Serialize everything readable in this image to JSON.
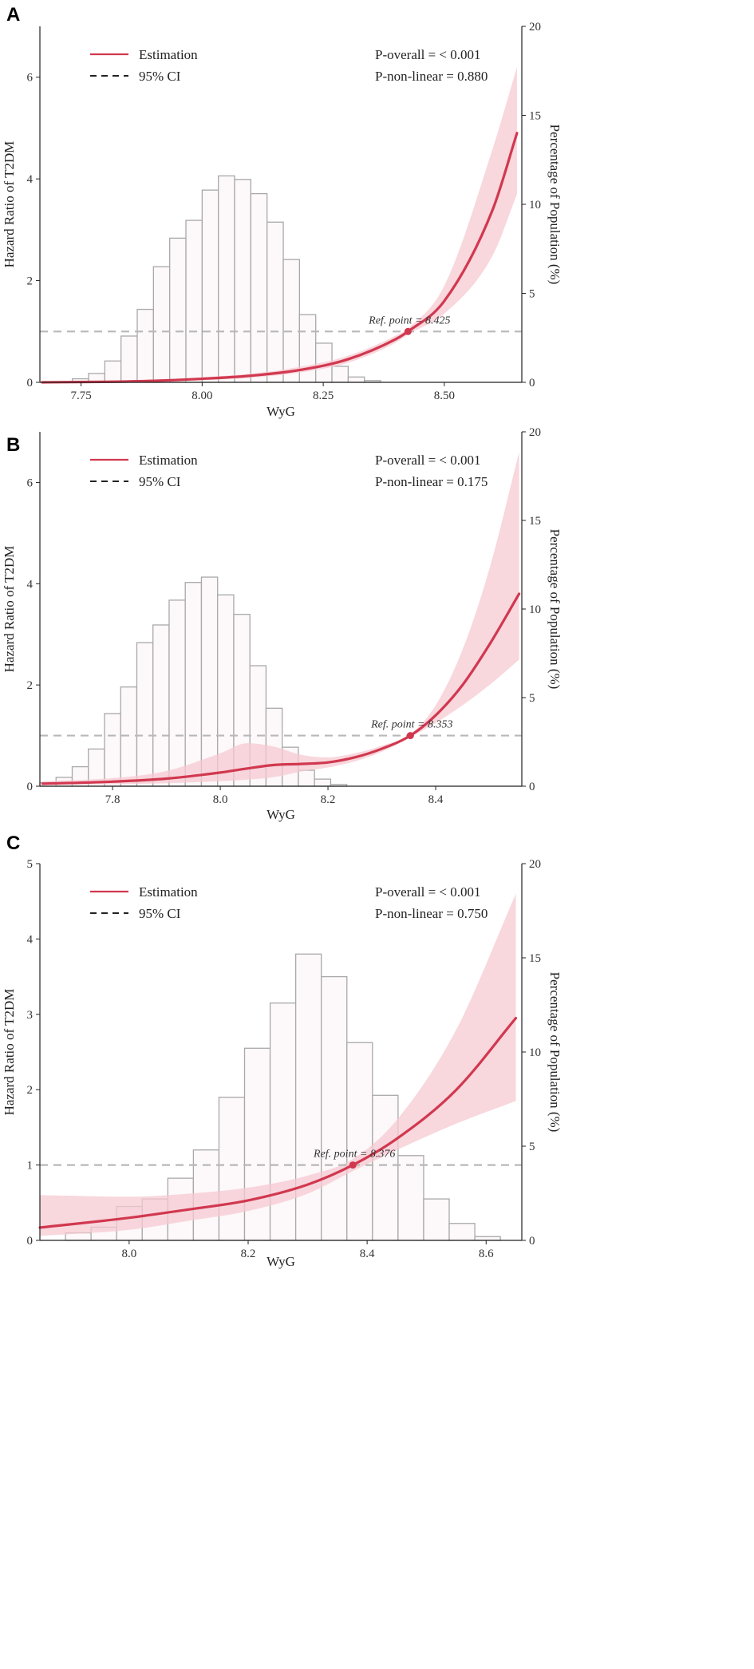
{
  "figure": {
    "style": {
      "curve_color": "#d1384f",
      "ci_color": "#f6c9d1",
      "bar_fill": "#fdf8f9",
      "bar_stroke": "#a9a9a9",
      "ref_line_color": "#b8b8b8",
      "axis_color": "#222222"
    },
    "legend": {
      "estimation_label": "Estimation",
      "ci_label": "95% CI"
    }
  },
  "chart_data": [
    {
      "type": "line",
      "panel_label": "A",
      "xlabel": "WyG",
      "ylabel_left": "Hazard Ratio of T2DM",
      "ylabel_right": "Percentage of Population (%)",
      "xlim": [
        7.665,
        8.66
      ],
      "ylim_left": [
        0,
        7
      ],
      "ylim_right": [
        0,
        20
      ],
      "x_ticks": [
        7.75,
        8.0,
        8.25,
        8.5
      ],
      "x_tick_labels": [
        "7.75",
        "8.00",
        "8.25",
        "8.50"
      ],
      "y_left_ticks": [
        0,
        2,
        4,
        6
      ],
      "y_right_ticks": [
        0,
        5,
        10,
        15,
        20
      ],
      "reference_hr": 1,
      "p_overall": "P-overall = < 0.001",
      "p_nonlinear": "P-non-linear = 0.880",
      "ref_point": {
        "x": 8.425,
        "y": 1.0,
        "label": "Ref. point = 8.425"
      },
      "histogram": {
        "bin_edges": [
          7.665,
          7.6985,
          7.732,
          7.7655,
          7.799,
          7.8325,
          7.866,
          7.8995,
          7.933,
          7.9665,
          8.0,
          8.0335,
          8.067,
          8.1005,
          8.134,
          8.1675,
          8.201,
          8.2345,
          8.268,
          8.3015,
          8.335,
          8.3685,
          8.402,
          8.4355,
          8.469,
          8.5025,
          8.536,
          8.5695,
          8.603,
          8.6365
        ],
        "percentages": [
          0.0,
          0.0,
          0.2,
          0.5,
          1.2,
          2.6,
          4.1,
          6.5,
          8.1,
          9.1,
          10.8,
          11.6,
          11.4,
          10.6,
          9.0,
          6.9,
          3.8,
          2.2,
          0.9,
          0.3,
          0.1,
          0,
          0,
          0,
          0,
          0,
          0,
          0,
          0
        ]
      },
      "estimate_curve": {
        "x": [
          7.67,
          7.8,
          7.9,
          8.0,
          8.1,
          8.2,
          8.3,
          8.4,
          8.425,
          8.5,
          8.6,
          8.65
        ],
        "hr": [
          0.0,
          0.01,
          0.03,
          0.07,
          0.13,
          0.24,
          0.45,
          0.85,
          1.0,
          1.6,
          3.4,
          4.9
        ]
      },
      "ci_upper": {
        "x": [
          7.67,
          7.8,
          7.9,
          8.0,
          8.1,
          8.2,
          8.3,
          8.4,
          8.425,
          8.5,
          8.6,
          8.65
        ],
        "hr": [
          0.01,
          0.02,
          0.05,
          0.1,
          0.17,
          0.3,
          0.52,
          0.92,
          1.06,
          1.9,
          4.6,
          6.2
        ]
      },
      "ci_lower": {
        "x": [
          7.67,
          7.8,
          7.9,
          8.0,
          8.1,
          8.2,
          8.3,
          8.4,
          8.425,
          8.5,
          8.6,
          8.65
        ],
        "hr": [
          0.0,
          0.0,
          0.01,
          0.04,
          0.09,
          0.19,
          0.38,
          0.78,
          0.94,
          1.35,
          2.5,
          3.7
        ]
      }
    },
    {
      "type": "line",
      "panel_label": "B",
      "xlabel": "WyG",
      "ylabel_left": "Hazard Ratio of T2DM",
      "ylabel_right": "Percentage of Population (%)",
      "xlim": [
        7.665,
        8.56
      ],
      "ylim_left": [
        0,
        7
      ],
      "ylim_right": [
        0,
        20
      ],
      "x_ticks": [
        7.8,
        8.0,
        8.2,
        8.4
      ],
      "x_tick_labels": [
        "7.8",
        "8.0",
        "8.2",
        "8.4"
      ],
      "y_left_ticks": [
        0,
        2,
        4,
        6
      ],
      "y_right_ticks": [
        0,
        5,
        10,
        15,
        20
      ],
      "reference_hr": 1,
      "p_overall": "P-overall = < 0.001",
      "p_nonlinear": "P-non-linear = 0.175",
      "ref_point": {
        "x": 8.353,
        "y": 1.0,
        "label": "Ref. point = 8.353"
      },
      "histogram": {
        "bin_edges": [
          7.665,
          7.695,
          7.725,
          7.755,
          7.785,
          7.815,
          7.845,
          7.875,
          7.905,
          7.935,
          7.965,
          7.995,
          8.025,
          8.055,
          8.085,
          8.115,
          8.145,
          8.175,
          8.205,
          8.235,
          8.265,
          8.295,
          8.325,
          8.355,
          8.385,
          8.415,
          8.445,
          8.475,
          8.505,
          8.535
        ],
        "percentages": [
          0.2,
          0.5,
          1.1,
          2.1,
          4.1,
          5.6,
          8.1,
          9.1,
          10.5,
          11.5,
          11.8,
          10.8,
          9.7,
          6.8,
          4.4,
          2.2,
          0.9,
          0.4,
          0.1,
          0,
          0,
          0,
          0,
          0,
          0,
          0,
          0,
          0,
          0
        ]
      },
      "estimate_curve": {
        "x": [
          7.67,
          7.8,
          7.9,
          8.0,
          8.05,
          8.1,
          8.15,
          8.2,
          8.25,
          8.3,
          8.353,
          8.4,
          8.45,
          8.5,
          8.555
        ],
        "hr": [
          0.05,
          0.09,
          0.15,
          0.27,
          0.35,
          0.42,
          0.44,
          0.47,
          0.57,
          0.74,
          1.0,
          1.4,
          2.0,
          2.8,
          3.8
        ]
      },
      "ci_upper": {
        "x": [
          7.67,
          7.8,
          7.9,
          8.0,
          8.05,
          8.1,
          8.15,
          8.2,
          8.25,
          8.3,
          8.353,
          8.4,
          8.45,
          8.5,
          8.555
        ],
        "hr": [
          0.1,
          0.16,
          0.3,
          0.65,
          0.85,
          0.78,
          0.62,
          0.57,
          0.65,
          0.8,
          1.03,
          1.6,
          2.7,
          4.3,
          6.6
        ]
      },
      "ci_lower": {
        "x": [
          7.67,
          7.8,
          7.9,
          8.0,
          8.05,
          8.1,
          8.15,
          8.2,
          8.25,
          8.3,
          8.353,
          8.4,
          8.45,
          8.5,
          8.555
        ],
        "hr": [
          0.02,
          0.04,
          0.06,
          0.1,
          0.13,
          0.18,
          0.29,
          0.37,
          0.49,
          0.68,
          0.97,
          1.25,
          1.6,
          2.0,
          2.5
        ]
      }
    },
    {
      "type": "line",
      "panel_label": "C",
      "xlabel": "WyG",
      "ylabel_left": "Hazard Ratio of T2DM",
      "ylabel_right": "Percentage of Population (%)",
      "xlim": [
        7.85,
        8.66
      ],
      "ylim_left": [
        0,
        5
      ],
      "ylim_right": [
        0,
        20
      ],
      "x_ticks": [
        8.0,
        8.2,
        8.4,
        8.6
      ],
      "x_tick_labels": [
        "8.0",
        "8.2",
        "8.4",
        "8.6"
      ],
      "y_left_ticks": [
        0,
        1,
        2,
        3,
        4,
        5
      ],
      "y_right_ticks": [
        0,
        5,
        10,
        15,
        20
      ],
      "reference_hr": 1,
      "p_overall": "P-overall = < 0.001",
      "p_nonlinear": "P-non-linear = 0.750",
      "ref_point": {
        "x": 8.376,
        "y": 1.0,
        "label": "Ref. point = 8.376"
      },
      "histogram": {
        "bin_edges": [
          7.85,
          7.893,
          7.936,
          7.979,
          8.022,
          8.065,
          8.108,
          8.151,
          8.194,
          8.237,
          8.28,
          8.323,
          8.366,
          8.409,
          8.452,
          8.495,
          8.538,
          8.581,
          8.624
        ],
        "percentages": [
          0.0,
          0.4,
          0.7,
          1.8,
          2.2,
          3.3,
          4.8,
          7.6,
          10.2,
          12.6,
          15.2,
          14.0,
          10.5,
          7.7,
          4.5,
          2.2,
          0.9,
          0.2
        ]
      },
      "estimate_curve": {
        "x": [
          7.85,
          8.0,
          8.1,
          8.2,
          8.3,
          8.376,
          8.45,
          8.55,
          8.65
        ],
        "hr": [
          0.17,
          0.3,
          0.41,
          0.53,
          0.74,
          1.0,
          1.35,
          2.0,
          2.95
        ]
      },
      "ci_upper": {
        "x": [
          7.85,
          8.0,
          8.1,
          8.2,
          8.3,
          8.376,
          8.45,
          8.55,
          8.65
        ],
        "hr": [
          0.6,
          0.58,
          0.62,
          0.7,
          0.86,
          1.08,
          1.6,
          2.8,
          4.6
        ]
      },
      "ci_lower": {
        "x": [
          7.85,
          8.0,
          8.1,
          8.2,
          8.3,
          8.376,
          8.45,
          8.55,
          8.65
        ],
        "hr": [
          0.06,
          0.14,
          0.26,
          0.39,
          0.62,
          0.92,
          1.2,
          1.55,
          1.85
        ]
      }
    }
  ]
}
